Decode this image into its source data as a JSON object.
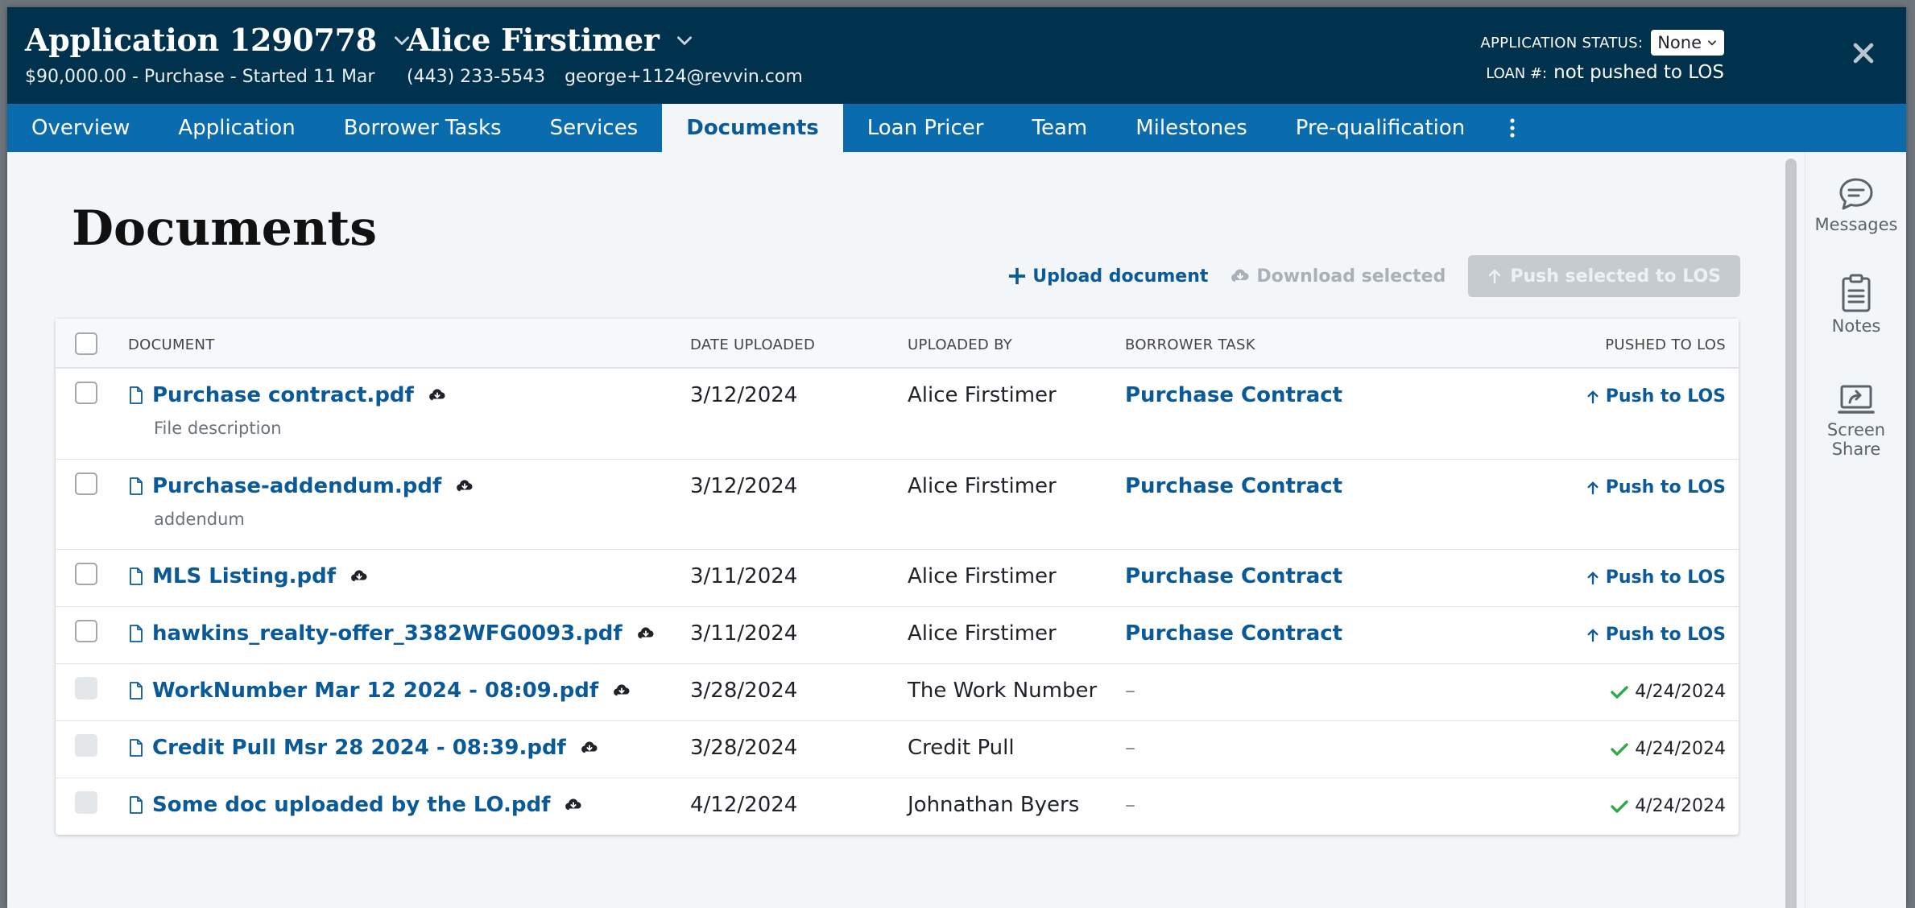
{
  "header": {
    "app_title": "Application 1290778",
    "app_subtitle": "$90,000.00 - Purchase - Started 11 Mar",
    "borrower_name": "Alice Firstimer",
    "phone": "(443) 233-5543",
    "email": "george+1124@revvin.com",
    "status_label": "APPLICATION STATUS:",
    "status_value": "None",
    "loan_label": "LOAN #:",
    "loan_value": "not pushed to LOS"
  },
  "tabs": [
    {
      "label": "Overview",
      "active": false
    },
    {
      "label": "Application",
      "active": false
    },
    {
      "label": "Borrower Tasks",
      "active": false
    },
    {
      "label": "Services",
      "active": false
    },
    {
      "label": "Documents",
      "active": true
    },
    {
      "label": "Loan Pricer",
      "active": false
    },
    {
      "label": "Team",
      "active": false
    },
    {
      "label": "Milestones",
      "active": false
    },
    {
      "label": "Pre-qualification",
      "active": false
    }
  ],
  "page": {
    "title": "Documents",
    "upload_label": "Upload document",
    "download_label": "Download selected",
    "push_selected_label": "Push selected to LOS"
  },
  "table": {
    "columns": {
      "document": "DOCUMENT",
      "date": "DATE UPLOADED",
      "by": "UPLOADED BY",
      "task": "BORROWER TASK",
      "los": "PUSHED TO LOS"
    },
    "rows": [
      {
        "name": "Purchase contract.pdf",
        "desc": "File description",
        "date": "3/12/2024",
        "by": "Alice Firstimer",
        "task": "Purchase Contract",
        "los": "Push to LOS",
        "pushed": false
      },
      {
        "name": "Purchase-addendum.pdf",
        "desc": "addendum",
        "date": "3/12/2024",
        "by": "Alice Firstimer",
        "task": "Purchase Contract",
        "los": "Push to LOS",
        "pushed": false
      },
      {
        "name": "MLS Listing.pdf",
        "desc": "",
        "date": "3/11/2024",
        "by": "Alice Firstimer",
        "task": "Purchase Contract",
        "los": "Push to LOS",
        "pushed": false
      },
      {
        "name": "hawkins_realty-offer_3382WFG0093.pdf",
        "desc": "",
        "date": "3/11/2024",
        "by": "Alice Firstimer",
        "task": "Purchase Contract",
        "los": "Push to LOS",
        "pushed": false
      },
      {
        "name": "WorkNumber Mar 12 2024 - 08:09.pdf",
        "desc": "",
        "date": "3/28/2024",
        "by": "The Work Number",
        "task": "–",
        "los": "4/24/2024",
        "pushed": true
      },
      {
        "name": "Credit Pull Msr 28 2024 - 08:39.pdf",
        "desc": "",
        "date": "3/28/2024",
        "by": "Credit Pull",
        "task": "–",
        "los": "4/24/2024",
        "pushed": true
      },
      {
        "name": "Some doc uploaded by the LO.pdf",
        "desc": "",
        "date": "4/12/2024",
        "by": "Johnathan Byers",
        "task": "–",
        "los": "4/24/2024",
        "pushed": true
      }
    ]
  },
  "side_panel": {
    "messages": "Messages",
    "notes": "Notes",
    "screen_share_line1": "Screen",
    "screen_share_line2": "Share"
  },
  "colors": {
    "header_bg": "#00324d",
    "tab_bar_bg": "#0a6cad",
    "link_blue": "#0a5a99",
    "check_green": "#2eaa4a"
  },
  "icons": [
    "chevron-down-icon",
    "close-icon",
    "more-vertical-icon",
    "plus-icon",
    "cloud-download-icon",
    "arrow-up-icon",
    "file-icon",
    "check-icon",
    "message-icon",
    "clipboard-icon",
    "screen-share-icon"
  ]
}
